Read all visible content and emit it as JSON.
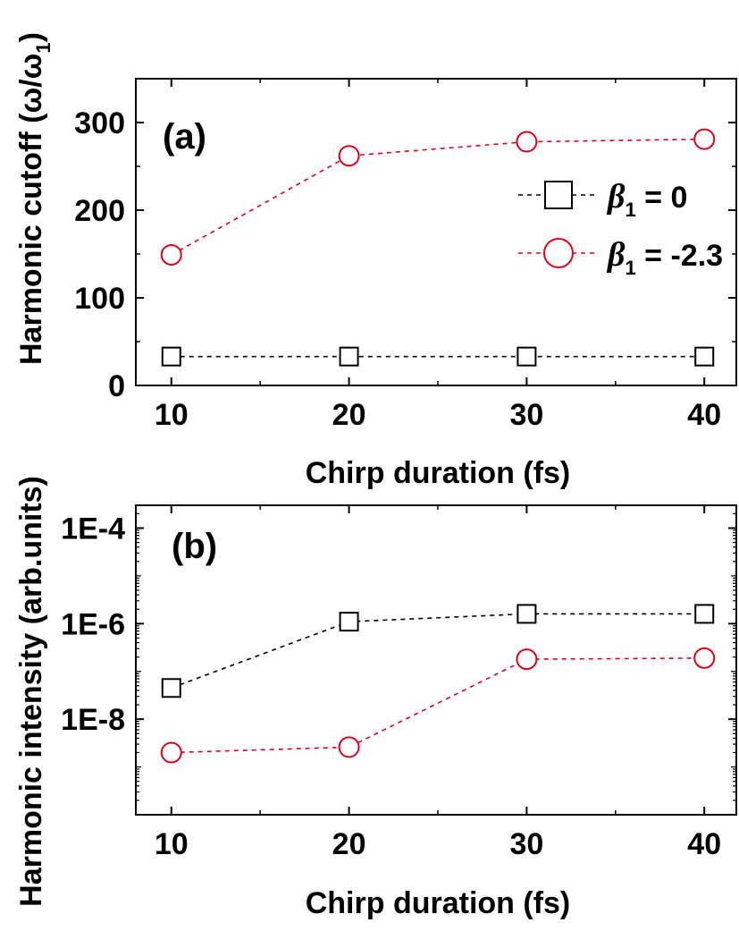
{
  "chart_data": [
    {
      "panel_label": "(a)",
      "type": "line",
      "xlabel": "Chirp duration (fs)",
      "ylabel": "Harmonic cutoff (ω/ω",
      "ylabel_sub": "1",
      "ylabel_close": ")",
      "x": [
        10,
        20,
        30,
        40
      ],
      "xlim": [
        8,
        41.8
      ],
      "ylim": [
        0,
        350
      ],
      "xticks": [
        10,
        20,
        30,
        40
      ],
      "xtick_labels": [
        "10",
        "20",
        "30",
        "40"
      ],
      "yticks": [
        0,
        100,
        200,
        300
      ],
      "ytick_labels": [
        "0",
        "100",
        "200",
        "300"
      ],
      "yscale": "linear",
      "series": [
        {
          "name_symbol": "β",
          "name_sub": "1",
          "name_rest": " = 0",
          "marker": "square",
          "color": "#000000",
          "values": [
            33,
            33,
            33,
            33
          ]
        },
        {
          "name_symbol": "β",
          "name_sub": "1",
          "name_rest": " = -2.3",
          "marker": "circle",
          "color": "#e0001b",
          "values": [
            149,
            262,
            278,
            281
          ]
        }
      ],
      "legend": "right"
    },
    {
      "panel_label": "(b)",
      "type": "line",
      "xlabel": "Chirp duration (fs)",
      "ylabel": "Harmonic intensity (arb.units)",
      "x": [
        10,
        20,
        30,
        40
      ],
      "xlim": [
        8,
        41.8
      ],
      "ylim": [
        1e-10,
        0.0003
      ],
      "xticks": [
        10,
        20,
        30,
        40
      ],
      "xtick_labels": [
        "10",
        "20",
        "30",
        "40"
      ],
      "yticks": [
        1e-08,
        1e-06,
        0.0001
      ],
      "ytick_labels": [
        "1E-8",
        "1E-6",
        "1E-4"
      ],
      "yscale": "log",
      "series": [
        {
          "marker": "square",
          "color": "#000000",
          "values": [
            4.5e-08,
            1.1e-06,
            1.6e-06,
            1.6e-06
          ]
        },
        {
          "marker": "circle",
          "color": "#e0001b",
          "values": [
            2e-09,
            2.6e-09,
            1.8e-07,
            1.9e-07
          ]
        }
      ]
    }
  ]
}
